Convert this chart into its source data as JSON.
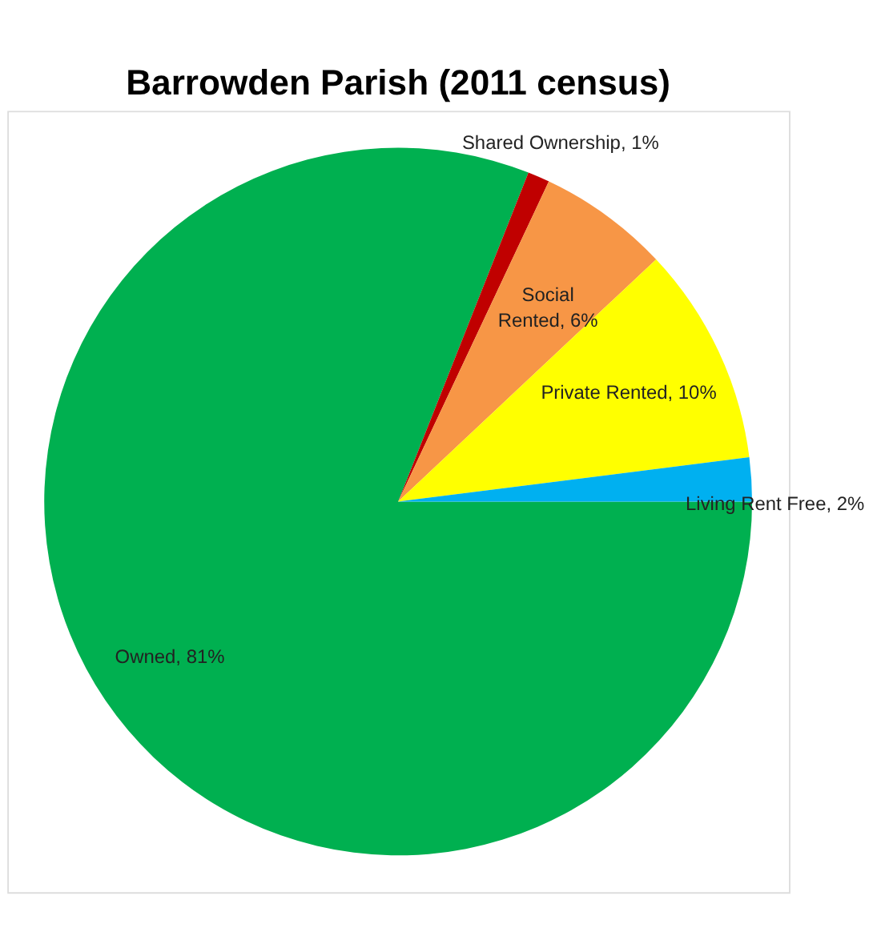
{
  "chart_data": {
    "type": "pie",
    "title": "Barrowden Parish (2011 census)",
    "categories": [
      "Owned",
      "Shared Ownership",
      "Social Rented",
      "Private Rented",
      "Living Rent Free"
    ],
    "values": [
      81,
      1,
      6,
      10,
      2
    ],
    "value_labels": [
      "81%",
      "1%",
      "6%",
      "10%",
      "2%"
    ],
    "colors": [
      "#00b050",
      "#c00000",
      "#f79646",
      "#ffff00",
      "#00b0f0"
    ],
    "legend": false
  }
}
